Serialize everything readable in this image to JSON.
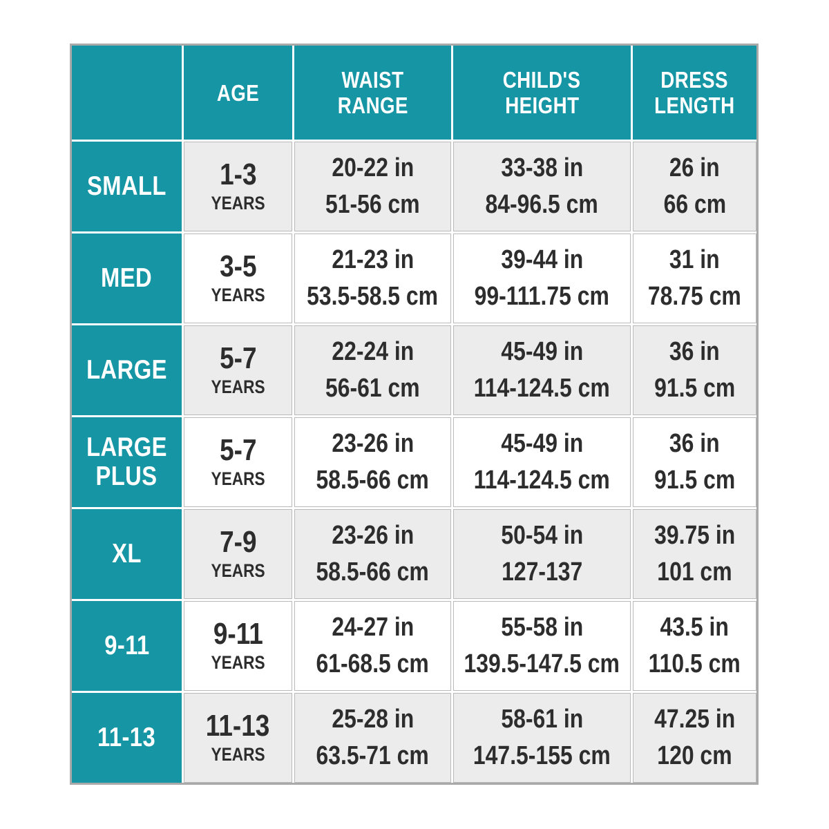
{
  "colors": {
    "teal": "#1696a4",
    "row_alt_gray": "#ececec",
    "row_white": "#ffffff",
    "grid_line_gray": "#a9a9a9",
    "text_dark": "#2d2d2d",
    "text_white": "#ffffff"
  },
  "table": {
    "header": {
      "corner": "",
      "age": "AGE",
      "waist_line1": "WAIST",
      "waist_line2": "RANGE",
      "height_line1": "CHILD'S",
      "height_line2": "HEIGHT",
      "dress_line1": "DRESS",
      "dress_line2": "LENGTH"
    },
    "rows": [
      {
        "size_line1": "SMALL",
        "age": "1-3",
        "age_unit": "YEARS",
        "waist_in": "20-22 in",
        "waist_cm": "51-56 cm",
        "height_in": "33-38 in",
        "height_cm": "84-96.5 cm",
        "dress_in": "26 in",
        "dress_cm": "66 cm"
      },
      {
        "size_line1": "MED",
        "age": "3-5",
        "age_unit": "YEARS",
        "waist_in": "21-23 in",
        "waist_cm": "53.5-58.5 cm",
        "height_in": "39-44 in",
        "height_cm": "99-111.75 cm",
        "dress_in": "31 in",
        "dress_cm": "78.75 cm"
      },
      {
        "size_line1": "LARGE",
        "age": "5-7",
        "age_unit": "YEARS",
        "waist_in": "22-24 in",
        "waist_cm": "56-61 cm",
        "height_in": "45-49 in",
        "height_cm": "114-124.5 cm",
        "dress_in": "36 in",
        "dress_cm": "91.5 cm"
      },
      {
        "size_line1": "LARGE",
        "size_line2": "PLUS",
        "age": "5-7",
        "age_unit": "YEARS",
        "waist_in": "23-26 in",
        "waist_cm": "58.5-66 cm",
        "height_in": "45-49 in",
        "height_cm": "114-124.5 cm",
        "dress_in": "36 in",
        "dress_cm": "91.5 cm"
      },
      {
        "size_line1": "XL",
        "age": "7-9",
        "age_unit": "YEARS",
        "waist_in": "23-26 in",
        "waist_cm": "58.5-66 cm",
        "height_in": "50-54 in",
        "height_cm": "127-137",
        "dress_in": "39.75 in",
        "dress_cm": "101 cm"
      },
      {
        "size_line1": "9-11",
        "age": "9-11",
        "age_unit": "YEARS",
        "waist_in": "24-27 in",
        "waist_cm": "61-68.5 cm",
        "height_in": "55-58 in",
        "height_cm": "139.5-147.5 cm",
        "dress_in": "43.5 in",
        "dress_cm": "110.5 cm"
      },
      {
        "size_line1": "11-13",
        "age": "11-13",
        "age_unit": "YEARS",
        "waist_in": "25-28 in",
        "waist_cm": "63.5-71 cm",
        "height_in": "58-61 in",
        "height_cm": "147.5-155 cm",
        "dress_in": "47.25 in",
        "dress_cm": "120 cm"
      }
    ]
  },
  "chart_data": {
    "type": "table",
    "title": "Children's dress size chart",
    "columns": [
      "",
      "AGE",
      "WAIST RANGE",
      "CHILD'S HEIGHT",
      "DRESS LENGTH"
    ],
    "rows": [
      [
        "SMALL",
        "1-3 YEARS",
        "20-22 in / 51-56 cm",
        "33-38 in / 84-96.5 cm",
        "26 in / 66 cm"
      ],
      [
        "MED",
        "3-5 YEARS",
        "21-23 in / 53.5-58.5 cm",
        "39-44 in / 99-111.75 cm",
        "31 in / 78.75 cm"
      ],
      [
        "LARGE",
        "5-7 YEARS",
        "22-24 in / 56-61 cm",
        "45-49 in / 114-124.5 cm",
        "36 in / 91.5 cm"
      ],
      [
        "LARGE PLUS",
        "5-7 YEARS",
        "23-26 in / 58.5-66 cm",
        "45-49 in / 114-124.5 cm",
        "36 in / 91.5 cm"
      ],
      [
        "XL",
        "7-9 YEARS",
        "23-26 in / 58.5-66 cm",
        "50-54 in / 127-137",
        "39.75 in / 101 cm"
      ],
      [
        "9-11",
        "9-11 YEARS",
        "24-27 in / 61-68.5 cm",
        "55-58 in / 139.5-147.5 cm",
        "43.5 in / 110.5 cm"
      ],
      [
        "11-13",
        "11-13 YEARS",
        "25-28 in / 63.5-71 cm",
        "58-61 in / 147.5-155 cm",
        "47.25 in / 120 cm"
      ]
    ]
  }
}
